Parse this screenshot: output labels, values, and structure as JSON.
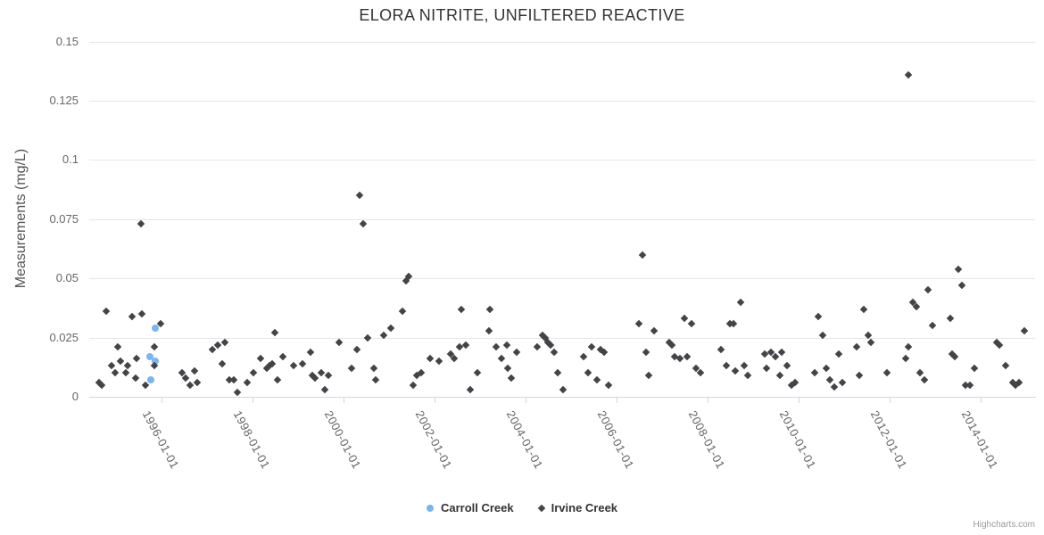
{
  "chart": {
    "credits": "Highcharts.com"
  },
  "chart_data": {
    "type": "scatter",
    "title": "ELORA NITRITE, UNFILTERED REACTIVE",
    "xlabel": "",
    "ylabel": "Measurements (mg/L)",
    "xlim": [
      1994.41,
      2015.2
    ],
    "ylim": [
      0,
      0.15
    ],
    "grid": true,
    "legend_position": "bottom-center",
    "x_ticks": [
      {
        "value": 1996,
        "label": "1996-01-01"
      },
      {
        "value": 1998,
        "label": "1998-01-01"
      },
      {
        "value": 2000,
        "label": "2000-01-01"
      },
      {
        "value": 2002,
        "label": "2002-01-01"
      },
      {
        "value": 2004,
        "label": "2004-01-01"
      },
      {
        "value": 2006,
        "label": "2006-01-01"
      },
      {
        "value": 2008,
        "label": "2008-01-01"
      },
      {
        "value": 2010,
        "label": "2010-01-01"
      },
      {
        "value": 2012,
        "label": "2012-01-01"
      },
      {
        "value": 2014,
        "label": "2014-01-01"
      }
    ],
    "y_ticks": [
      {
        "value": 0,
        "label": "0"
      },
      {
        "value": 0.025,
        "label": "0.025"
      },
      {
        "value": 0.05,
        "label": "0.05"
      },
      {
        "value": 0.075,
        "label": "0.075"
      },
      {
        "value": 0.1,
        "label": "0.1"
      },
      {
        "value": 0.125,
        "label": "0.125"
      },
      {
        "value": 0.15,
        "label": "0.15"
      }
    ],
    "series": [
      {
        "name": "Carroll Creek",
        "color": "#7cb5ec",
        "marker": "circle",
        "points": [
          [
            1995.75,
            0.017
          ],
          [
            1995.76,
            0.007
          ],
          [
            1995.86,
            0.029
          ],
          [
            1995.86,
            0.015
          ]
        ]
      },
      {
        "name": "Irvine Creek",
        "color": "#434348",
        "marker": "diamond",
        "points": [
          [
            1994.63,
            0.006
          ],
          [
            1994.69,
            0.005
          ],
          [
            1994.78,
            0.036
          ],
          [
            1994.9,
            0.013
          ],
          [
            1994.98,
            0.01
          ],
          [
            1995.04,
            0.021
          ],
          [
            1995.1,
            0.015
          ],
          [
            1995.22,
            0.01
          ],
          [
            1995.25,
            0.013
          ],
          [
            1995.35,
            0.034
          ],
          [
            1995.43,
            0.008
          ],
          [
            1995.45,
            0.016
          ],
          [
            1995.55,
            0.073
          ],
          [
            1995.57,
            0.035
          ],
          [
            1995.65,
            0.005
          ],
          [
            1995.84,
            0.021
          ],
          [
            1995.84,
            0.013
          ],
          [
            1995.98,
            0.031
          ],
          [
            1996.45,
            0.01
          ],
          [
            1996.53,
            0.008
          ],
          [
            1996.63,
            0.005
          ],
          [
            1996.73,
            0.011
          ],
          [
            1996.78,
            0.006
          ],
          [
            1997.12,
            0.02
          ],
          [
            1997.24,
            0.022
          ],
          [
            1997.33,
            0.014
          ],
          [
            1997.39,
            0.023
          ],
          [
            1997.49,
            0.007
          ],
          [
            1997.59,
            0.007
          ],
          [
            1997.67,
            0.002
          ],
          [
            1997.88,
            0.006
          ],
          [
            1998.02,
            0.01
          ],
          [
            1998.18,
            0.016
          ],
          [
            1998.31,
            0.012
          ],
          [
            1998.37,
            0.013
          ],
          [
            1998.43,
            0.014
          ],
          [
            1998.49,
            0.027
          ],
          [
            1998.55,
            0.007
          ],
          [
            1998.67,
            0.017
          ],
          [
            1998.9,
            0.013
          ],
          [
            1999.1,
            0.014
          ],
          [
            1999.27,
            0.019
          ],
          [
            1999.31,
            0.009
          ],
          [
            1999.37,
            0.008
          ],
          [
            1999.51,
            0.01
          ],
          [
            1999.59,
            0.003
          ],
          [
            1999.67,
            0.009
          ],
          [
            1999.9,
            0.023
          ],
          [
            2000.18,
            0.012
          ],
          [
            2000.29,
            0.02
          ],
          [
            2000.35,
            0.085
          ],
          [
            2000.43,
            0.073
          ],
          [
            2000.53,
            0.025
          ],
          [
            2000.67,
            0.012
          ],
          [
            2000.71,
            0.007
          ],
          [
            2000.88,
            0.026
          ],
          [
            2001.04,
            0.029
          ],
          [
            2001.29,
            0.036
          ],
          [
            2001.37,
            0.049
          ],
          [
            2001.43,
            0.051
          ],
          [
            2001.53,
            0.005
          ],
          [
            2001.61,
            0.009
          ],
          [
            2001.71,
            0.01
          ],
          [
            2001.9,
            0.016
          ],
          [
            2002.1,
            0.015
          ],
          [
            2002.35,
            0.018
          ],
          [
            2002.43,
            0.016
          ],
          [
            2002.55,
            0.021
          ],
          [
            2002.59,
            0.037
          ],
          [
            2002.69,
            0.022
          ],
          [
            2002.78,
            0.003
          ],
          [
            2002.94,
            0.01
          ],
          [
            2003.2,
            0.028
          ],
          [
            2003.22,
            0.037
          ],
          [
            2003.35,
            0.021
          ],
          [
            2003.47,
            0.016
          ],
          [
            2003.59,
            0.022
          ],
          [
            2003.61,
            0.012
          ],
          [
            2003.69,
            0.008
          ],
          [
            2003.8,
            0.019
          ],
          [
            2004.25,
            0.021
          ],
          [
            2004.37,
            0.026
          ],
          [
            2004.43,
            0.025
          ],
          [
            2004.49,
            0.023
          ],
          [
            2004.55,
            0.022
          ],
          [
            2004.63,
            0.019
          ],
          [
            2004.71,
            0.01
          ],
          [
            2004.82,
            0.003
          ],
          [
            2005.27,
            0.017
          ],
          [
            2005.37,
            0.01
          ],
          [
            2005.45,
            0.021
          ],
          [
            2005.57,
            0.007
          ],
          [
            2005.65,
            0.02
          ],
          [
            2005.73,
            0.019
          ],
          [
            2005.82,
            0.005
          ],
          [
            2006.49,
            0.031
          ],
          [
            2006.57,
            0.06
          ],
          [
            2006.65,
            0.019
          ],
          [
            2006.71,
            0.009
          ],
          [
            2006.82,
            0.028
          ],
          [
            2007.16,
            0.023
          ],
          [
            2007.22,
            0.022
          ],
          [
            2007.27,
            0.017
          ],
          [
            2007.39,
            0.016
          ],
          [
            2007.49,
            0.033
          ],
          [
            2007.55,
            0.017
          ],
          [
            2007.65,
            0.031
          ],
          [
            2007.75,
            0.012
          ],
          [
            2007.84,
            0.01
          ],
          [
            2008.29,
            0.02
          ],
          [
            2008.41,
            0.013
          ],
          [
            2008.49,
            0.031
          ],
          [
            2008.57,
            0.031
          ],
          [
            2008.61,
            0.011
          ],
          [
            2008.73,
            0.04
          ],
          [
            2008.8,
            0.013
          ],
          [
            2008.88,
            0.009
          ],
          [
            2009.25,
            0.018
          ],
          [
            2009.29,
            0.012
          ],
          [
            2009.39,
            0.019
          ],
          [
            2009.49,
            0.017
          ],
          [
            2009.59,
            0.009
          ],
          [
            2009.63,
            0.019
          ],
          [
            2009.75,
            0.013
          ],
          [
            2009.84,
            0.005
          ],
          [
            2009.92,
            0.006
          ],
          [
            2010.35,
            0.01
          ],
          [
            2010.43,
            0.034
          ],
          [
            2010.53,
            0.026
          ],
          [
            2010.61,
            0.012
          ],
          [
            2010.69,
            0.007
          ],
          [
            2010.78,
            0.004
          ],
          [
            2010.88,
            0.018
          ],
          [
            2010.96,
            0.006
          ],
          [
            2011.27,
            0.021
          ],
          [
            2011.33,
            0.009
          ],
          [
            2011.43,
            0.037
          ],
          [
            2011.53,
            0.026
          ],
          [
            2011.59,
            0.023
          ],
          [
            2011.94,
            0.01
          ],
          [
            2012.35,
            0.016
          ],
          [
            2012.41,
            0.021
          ],
          [
            2012.41,
            0.136
          ],
          [
            2012.51,
            0.04
          ],
          [
            2012.59,
            0.038
          ],
          [
            2012.67,
            0.01
          ],
          [
            2012.76,
            0.007
          ],
          [
            2012.84,
            0.045
          ],
          [
            2012.94,
            0.03
          ],
          [
            2013.33,
            0.033
          ],
          [
            2013.37,
            0.018
          ],
          [
            2013.43,
            0.017
          ],
          [
            2013.51,
            0.054
          ],
          [
            2013.59,
            0.047
          ],
          [
            2013.67,
            0.005
          ],
          [
            2013.76,
            0.005
          ],
          [
            2013.86,
            0.012
          ],
          [
            2014.35,
            0.023
          ],
          [
            2014.41,
            0.022
          ],
          [
            2014.55,
            0.013
          ],
          [
            2014.71,
            0.006
          ],
          [
            2014.76,
            0.005
          ],
          [
            2014.84,
            0.006
          ],
          [
            2014.96,
            0.028
          ]
        ]
      }
    ]
  }
}
